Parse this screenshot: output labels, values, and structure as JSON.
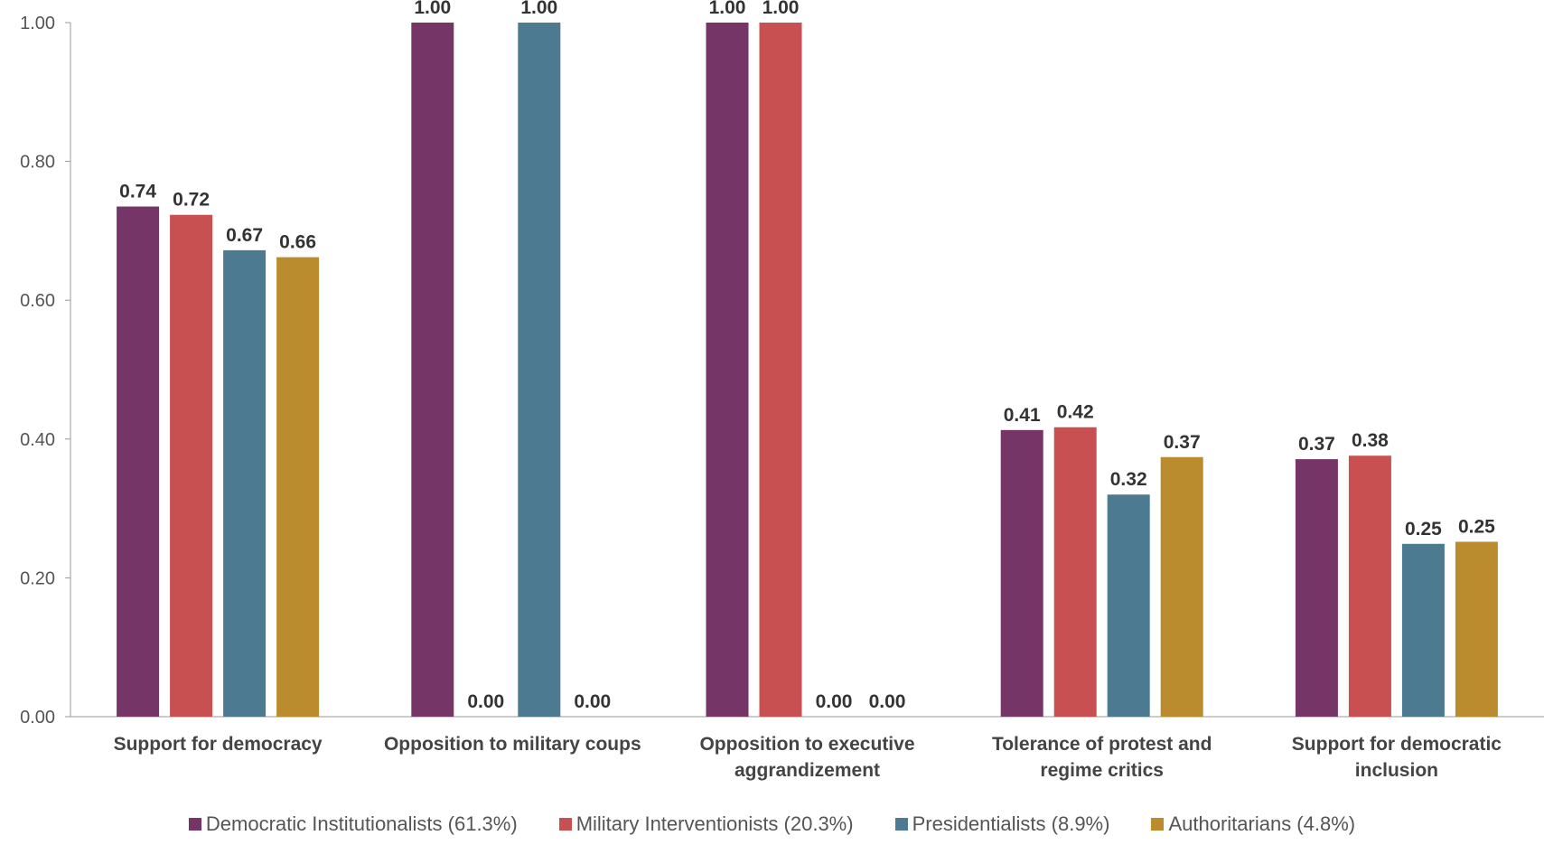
{
  "chart_data": {
    "type": "bar",
    "title": "",
    "xlabel": "",
    "ylabel": "",
    "ylim": [
      0,
      1
    ],
    "yticks": [
      "0.00",
      "0.20",
      "0.40",
      "0.60",
      "0.80",
      "1.00"
    ],
    "grid": false,
    "legend_position": "bottom",
    "categories": [
      [
        "Support for democracy"
      ],
      [
        "Opposition to military coups"
      ],
      [
        "Opposition to executive",
        "aggrandizement"
      ],
      [
        "Tolerance of protest and",
        "regime critics"
      ],
      [
        "Support for democratic",
        "inclusion"
      ]
    ],
    "series": [
      {
        "name": "Democratic Institutionalists (61.3%)",
        "color": "#763567",
        "values": [
          0.735,
          1.0,
          1.0,
          0.413,
          0.371
        ],
        "labels": [
          "0.74",
          "1.00",
          "1.00",
          "0.41",
          "0.37"
        ]
      },
      {
        "name": "Military Interventionists (20.3%)",
        "color": "#C95050",
        "values": [
          0.723,
          0.0,
          1.0,
          0.417,
          0.376
        ],
        "labels": [
          "0.72",
          "0.00",
          "1.00",
          "0.42",
          "0.38"
        ]
      },
      {
        "name": "Presidentialists (8.9%)",
        "color": "#4C7A91",
        "values": [
          0.672,
          1.0,
          0.0,
          0.32,
          0.249
        ],
        "labels": [
          "0.67",
          "1.00",
          "0.00",
          "0.32",
          "0.25"
        ]
      },
      {
        "name": "Authoritarians (4.8%)",
        "color": "#BA8C2D",
        "values": [
          0.662,
          0.0,
          0.0,
          0.374,
          0.252
        ],
        "labels": [
          "0.66",
          "0.00",
          "0.00",
          "0.37",
          "0.25"
        ]
      }
    ]
  }
}
